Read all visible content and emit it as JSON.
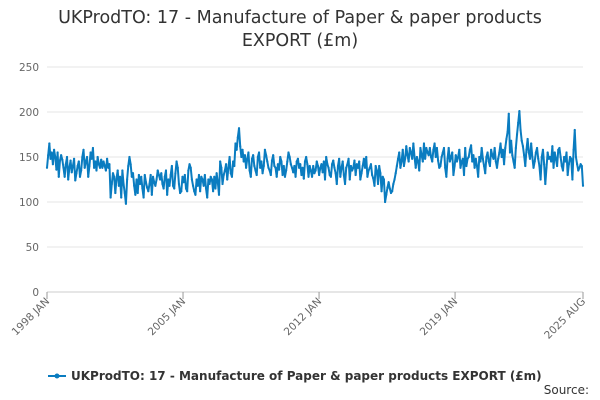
{
  "chart_data": {
    "type": "line",
    "title_lines": [
      "UKProdTO: 17 - Manufacture of Paper & paper products",
      "EXPORT (£m)"
    ],
    "y_ticks": [
      0,
      50,
      100,
      150,
      200,
      250
    ],
    "y_tick_labels": [
      "0",
      "50",
      "100",
      "150",
      "200",
      "250"
    ],
    "ylim": [
      0,
      250
    ],
    "x_range": [
      "1998-01",
      "2025-08"
    ],
    "x_ticks": [
      "1998-01",
      "2005-01",
      "2012-01",
      "2019-01",
      "2025-08"
    ],
    "x_tick_labels": [
      "1998 JAN",
      "2005 JAN",
      "2012 JAN",
      "2019 JAN",
      "2025 AUG"
    ],
    "grid": "horizontal",
    "legend_position": "bottom",
    "series": [
      {
        "name": "UKProdTO: 17 - Manufacture of Paper & paper products EXPORT (£m)",
        "color": "#0a7cc0",
        "values": [
          138,
          152,
          165,
          148,
          155,
          142,
          158,
          150,
          136,
          155,
          128,
          146,
          152,
          147,
          138,
          128,
          142,
          150,
          125,
          138,
          146,
          133,
          140,
          148,
          124,
          132,
          140,
          145,
          128,
          135,
          150,
          158,
          138,
          145,
          150,
          128,
          140,
          155,
          148,
          160,
          138,
          145,
          135,
          150,
          142,
          138,
          147,
          138,
          145,
          140,
          135,
          148,
          138,
          142,
          105,
          120,
          132,
          128,
          110,
          126,
          135,
          118,
          128,
          105,
          135,
          120,
          110,
          98,
          125,
          140,
          150,
          142,
          128,
          132,
          118,
          108,
          125,
          110,
          130,
          120,
          128,
          115,
          105,
          130,
          122,
          116,
          112,
          120,
          130,
          108,
          128,
          122,
          118,
          125,
          135,
          130,
          125,
          132,
          120,
          115,
          128,
          135,
          108,
          125,
          118,
          130,
          140,
          118,
          115,
          132,
          145,
          138,
          120,
          110,
          112,
          128,
          122,
          130,
          115,
          112,
          135,
          142,
          138,
          125,
          118,
          112,
          108,
          125,
          118,
          130,
          112,
          128,
          125,
          118,
          130,
          115,
          105,
          125,
          120,
          128,
          125,
          112,
          128,
          115,
          132,
          122,
          108,
          145,
          138,
          120,
          130,
          135,
          142,
          125,
          138,
          150,
          132,
          128,
          145,
          140,
          165,
          158,
          172,
          182,
          162,
          150,
          158,
          145,
          152,
          138,
          148,
          155,
          135,
          128,
          148,
          152,
          140,
          135,
          130,
          150,
          155,
          138,
          145,
          132,
          140,
          158,
          152,
          145,
          138,
          135,
          130,
          146,
          152,
          140,
          138,
          128,
          142,
          136,
          150,
          145,
          130,
          140,
          128,
          135,
          145,
          155,
          150,
          142,
          138,
          133,
          140,
          128,
          145,
          148,
          138,
          142,
          130,
          138,
          126,
          145,
          150,
          142,
          128,
          140,
          135,
          128,
          140,
          132,
          135,
          145,
          140,
          130,
          138,
          142,
          133,
          145,
          125,
          150,
          142,
          138,
          130,
          128,
          142,
          146,
          138,
          132,
          120,
          140,
          148,
          128,
          138,
          145,
          130,
          120,
          138,
          142,
          148,
          125,
          140,
          135,
          138,
          146,
          130,
          142,
          138,
          145,
          125,
          132,
          140,
          148,
          138,
          150,
          128,
          135,
          138,
          142,
          130,
          126,
          118,
          140,
          135,
          120,
          140,
          132,
          112,
          128,
          125,
          100,
          108,
          116,
          122,
          115,
          110,
          112,
          120,
          125,
          132,
          140,
          148,
          155,
          138,
          145,
          158,
          140,
          148,
          162,
          152,
          145,
          160,
          155,
          148,
          165,
          150,
          138,
          150,
          145,
          135,
          160,
          152,
          145,
          165,
          148,
          160,
          155,
          152,
          160,
          150,
          145,
          158,
          165,
          150,
          160,
          146,
          138,
          140,
          150,
          155,
          160,
          138,
          128,
          148,
          160,
          145,
          150,
          155,
          130,
          140,
          152,
          145,
          150,
          158,
          138,
          145,
          148,
          130,
          160,
          140,
          148,
          150,
          158,
          163,
          145,
          152,
          138,
          148,
          140,
          128,
          150,
          145,
          160,
          148,
          140,
          132,
          150,
          155,
          145,
          140,
          158,
          152,
          148,
          160,
          145,
          138,
          148,
          155,
          165,
          150,
          158,
          142,
          160,
          170,
          178,
          198,
          155,
          168,
          152,
          145,
          138,
          160,
          175,
          188,
          201,
          180,
          168,
          162,
          152,
          140,
          158,
          170,
          155,
          148,
          165,
          150,
          138,
          145,
          155,
          160,
          148,
          140,
          125,
          150,
          158,
          142,
          120,
          138,
          155,
          148,
          150,
          145,
          162,
          138,
          155,
          148,
          140,
          158,
          160,
          150,
          140,
          135,
          150,
          145,
          155,
          130,
          142,
          150,
          148,
          125,
          158,
          180,
          150,
          142,
          135,
          138,
          142,
          140,
          118
        ]
      }
    ]
  },
  "legend": {
    "label": "UKProdTO: 17 - Manufacture of Paper & paper products EXPORT (£m)"
  },
  "source_label": "Source:"
}
